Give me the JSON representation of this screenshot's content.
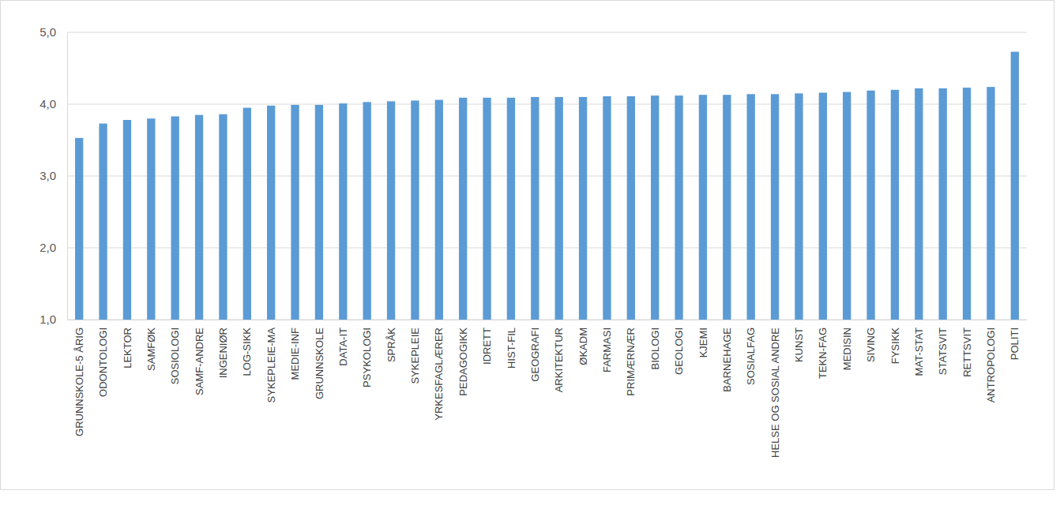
{
  "chart_data": {
    "type": "bar",
    "categories": [
      "GRUNNSKOLE-5 ÅRIG",
      "ODONTOLOGI",
      "LEKTOR",
      "SAMFØK",
      "SOSIOLOGI",
      "SAMF-ANDRE",
      "INGENIØR",
      "LOG-SIKK",
      "SYKEPLEIE-MA",
      "MEDIE-INF",
      "GRUNNSKOLE",
      "DATA-IT",
      "PSYKOLOGI",
      "SPRÅK",
      "SYKEPLEIE",
      "YRKESFAGLÆRER",
      "PEDAGOGIKK",
      "IDRETT",
      "HIST-FIL",
      "GEOGRAFI",
      "ARKITEKTUR",
      "ØKADM",
      "FARMASI",
      "PRIMÆRNÆR",
      "BIOLOGI",
      "GEOLOGI",
      "KJEMI",
      "BARNEHAGE",
      "SOSIALFAG",
      "HELSE OG SOSIAL ANDRE",
      "KUNST",
      "TEKN-FAG",
      "MEDISIN",
      "SIVING",
      "FYSIKK",
      "MAT-STAT",
      "STATSVIT",
      "RETTSVIT",
      "ANTROPOLOGI",
      "POLITI"
    ],
    "values": [
      3.53,
      3.73,
      3.78,
      3.8,
      3.83,
      3.85,
      3.86,
      3.95,
      3.98,
      3.99,
      3.99,
      4.01,
      4.03,
      4.04,
      4.05,
      4.06,
      4.09,
      4.09,
      4.09,
      4.1,
      4.1,
      4.1,
      4.11,
      4.11,
      4.12,
      4.12,
      4.13,
      4.13,
      4.14,
      4.14,
      4.15,
      4.16,
      4.17,
      4.19,
      4.2,
      4.22,
      4.22,
      4.23,
      4.24,
      4.73
    ],
    "color": "#5b9bd5",
    "ylim": [
      1,
      5
    ],
    "yticks": [
      {
        "value": 1,
        "label": "1,0"
      },
      {
        "value": 2,
        "label": "2,0"
      },
      {
        "value": 3,
        "label": "3,0"
      },
      {
        "value": 4,
        "label": "4,0"
      },
      {
        "value": 5,
        "label": "5,0"
      }
    ],
    "grid": true
  }
}
